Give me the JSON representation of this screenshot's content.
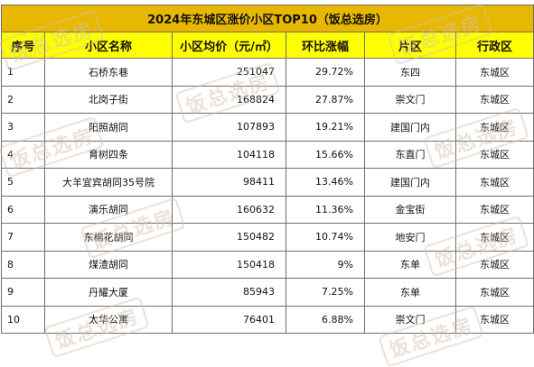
{
  "table": {
    "title": "2024年东城区涨价小区TOP10（饭总选房）",
    "headers": [
      "序号",
      "小区名称",
      "小区均价（元/㎡）",
      "环比涨幅",
      "片区",
      "行政区"
    ],
    "rows": [
      {
        "rank": "1",
        "name": "石桥东巷",
        "price": "251047",
        "change": "29.72%",
        "area": "东四",
        "district": "东城区"
      },
      {
        "rank": "2",
        "name": "北岗子街",
        "price": "168824",
        "change": "27.87%",
        "area": "崇文门",
        "district": "东城区"
      },
      {
        "rank": "3",
        "name": "阳照胡同",
        "price": "107893",
        "change": "19.21%",
        "area": "建国门内",
        "district": "东城区"
      },
      {
        "rank": "4",
        "name": "育树四条",
        "price": "104118",
        "change": "15.66%",
        "area": "东直门",
        "district": "东城区"
      },
      {
        "rank": "5",
        "name": "大羊宜宾胡同35号院",
        "price": "98411",
        "change": "13.46%",
        "area": "建国门内",
        "district": "东城区"
      },
      {
        "rank": "6",
        "name": "演乐胡同",
        "price": "160632",
        "change": "11.36%",
        "area": "金宝街",
        "district": "东城区"
      },
      {
        "rank": "7",
        "name": "东棉花胡同",
        "price": "150482",
        "change": "10.74%",
        "area": "地安门",
        "district": "东城区"
      },
      {
        "rank": "8",
        "name": "煤渣胡同",
        "price": "150418",
        "change": "9%",
        "area": "东单",
        "district": "东城区"
      },
      {
        "rank": "9",
        "name": "丹耀大厦",
        "price": "85943",
        "change": "7.25%",
        "area": "东单",
        "district": "东城区"
      },
      {
        "rank": "10",
        "name": "太华公寓",
        "price": "76401",
        "change": "6.88%",
        "area": "崇文门",
        "district": "东城区"
      }
    ]
  },
  "watermark": "饭总选房"
}
